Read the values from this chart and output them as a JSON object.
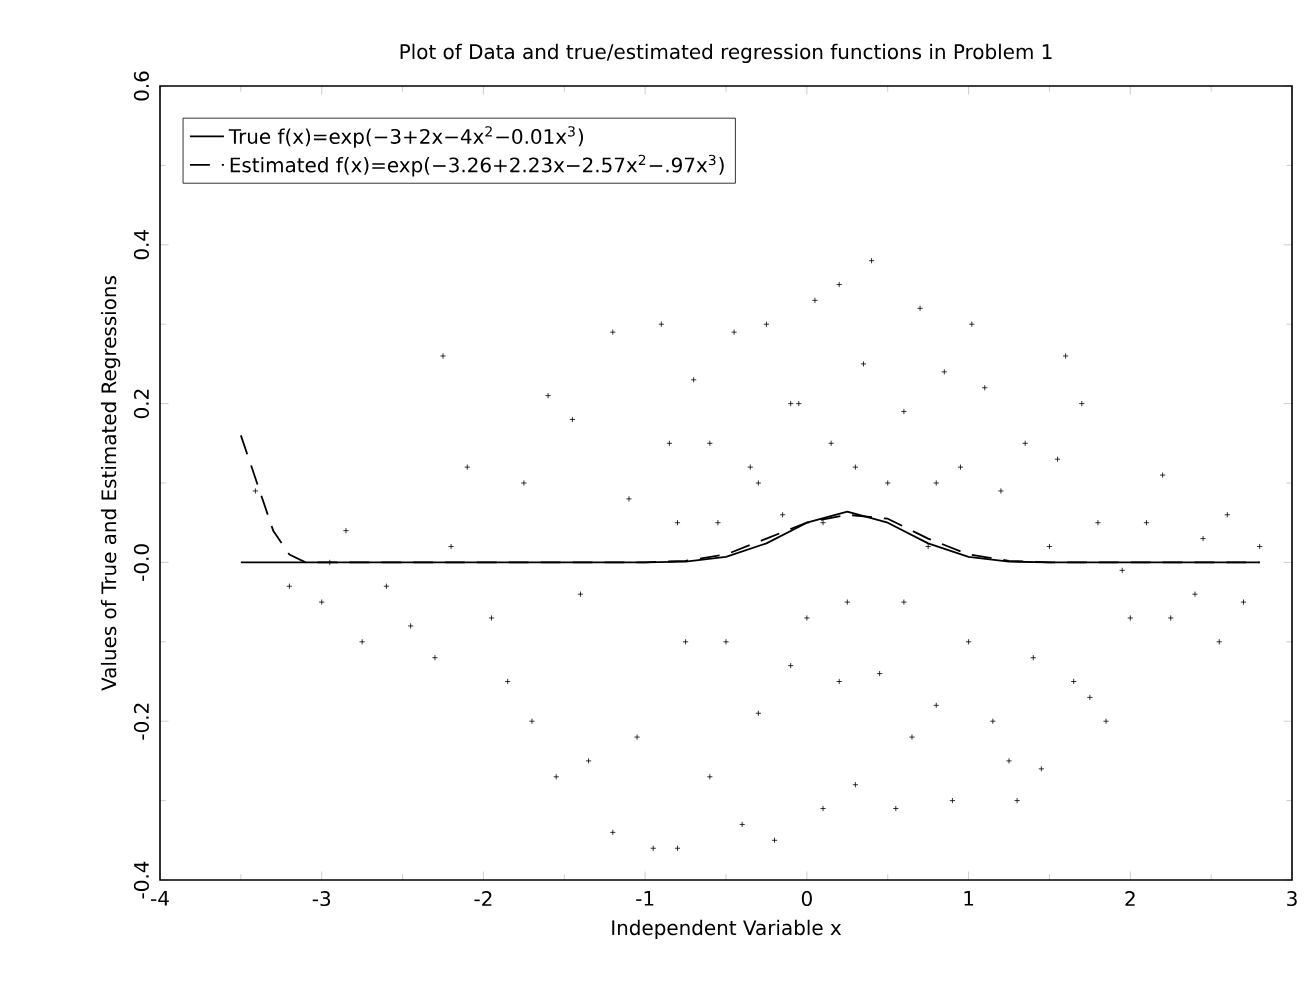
{
  "chart_data": {
    "type": "scatter",
    "title": "Plot of Data and true/estimated regression functions in Problem 1",
    "xlabel": "Independent Variable x",
    "ylabel": "Values of True and Estimated  Regressions",
    "xlim": [
      -4,
      3
    ],
    "ylim": [
      -0.4,
      0.6
    ],
    "xticks": [
      -4,
      -3,
      -2,
      -1,
      0,
      1,
      2,
      3
    ],
    "yticks": [
      -0.4,
      -0.2,
      {
        "value": 0,
        "label": "-0.0"
      },
      0.2,
      0.4,
      0.6
    ],
    "legend": "top left",
    "grid": false,
    "series": [
      {
        "color": "#000000",
        "marker": "cross",
        "x": [
          -3.41,
          -3.2,
          -3.0,
          -2.95,
          -2.85,
          -2.75,
          -2.6,
          -2.45,
          -2.3,
          -2.25,
          -2.2,
          -2.1,
          -1.95,
          -1.85,
          -1.75,
          -1.7,
          -1.6,
          -1.55,
          -1.45,
          -1.4,
          -1.35,
          -1.2,
          -1.2,
          -1.1,
          -1.05,
          -0.95,
          -0.9,
          -0.85,
          -0.8,
          -0.75,
          -0.7,
          -0.6,
          -0.55,
          -0.45,
          -0.4,
          -0.35,
          -0.3,
          -0.25,
          -0.2,
          -0.15,
          -0.1,
          -0.05,
          0.0,
          0.05,
          0.1,
          0.15,
          0.2,
          0.25,
          0.3,
          0.35,
          0.4,
          0.45,
          0.5,
          0.55,
          0.6,
          0.65,
          0.7,
          0.75,
          0.8,
          0.85,
          0.9,
          0.95,
          1.0,
          1.02,
          1.1,
          1.15,
          1.2,
          1.25,
          1.3,
          1.35,
          1.4,
          1.45,
          1.5,
          1.55,
          1.6,
          1.65,
          1.7,
          1.75,
          1.8,
          1.85,
          1.95,
          2.0,
          2.1,
          2.2,
          2.25,
          2.4,
          2.45,
          2.55,
          2.6,
          2.7,
          2.8,
          -0.5,
          -0.3,
          0.1,
          0.3,
          0.6,
          -0.6,
          0.2,
          -0.1,
          0.8,
          -0.8
        ],
        "values": [
          0.09,
          -0.03,
          -0.05,
          0.0,
          0.04,
          -0.1,
          -0.03,
          -0.08,
          -0.12,
          0.26,
          0.02,
          0.12,
          -0.07,
          -0.15,
          0.1,
          -0.2,
          0.21,
          -0.27,
          0.18,
          -0.04,
          -0.25,
          0.29,
          -0.34,
          0.08,
          -0.22,
          -0.36,
          0.3,
          0.15,
          -0.36,
          -0.1,
          0.23,
          -0.27,
          0.05,
          0.29,
          -0.33,
          0.12,
          -0.19,
          0.3,
          -0.35,
          0.06,
          -0.13,
          0.2,
          -0.07,
          0.33,
          -0.31,
          0.15,
          0.35,
          -0.05,
          -0.28,
          0.25,
          0.38,
          -0.14,
          0.1,
          -0.31,
          0.19,
          -0.22,
          0.32,
          0.02,
          -0.18,
          0.24,
          -0.3,
          0.12,
          -0.1,
          0.3,
          0.22,
          -0.2,
          0.09,
          -0.25,
          -0.3,
          0.15,
          -0.12,
          -0.26,
          0.02,
          0.13,
          0.26,
          -0.15,
          0.2,
          -0.17,
          0.05,
          -0.2,
          -0.01,
          -0.07,
          0.05,
          0.11,
          -0.07,
          -0.04,
          0.03,
          -0.1,
          0.06,
          -0.05,
          0.02,
          -0.1,
          0.1,
          0.05,
          0.12,
          -0.05,
          0.15,
          -0.15,
          0.2,
          0.1,
          0.05
        ]
      },
      {
        "type": "line",
        "name": "True f(x)=exp(−3+2x−4x$^{2}$−0.01x$^{3}$)",
        "color": "#000000",
        "line_style": "solid",
        "x": [
          -3.5,
          -2,
          -1,
          -0.75,
          -0.5,
          -0.25,
          0,
          0.25,
          0.5,
          0.75,
          1,
          1.25,
          1.5,
          2,
          2.8
        ],
        "values": [
          0,
          0,
          0,
          0.001,
          0.007,
          0.024,
          0.05,
          0.064,
          0.05,
          0.024,
          0.007,
          0.001,
          0,
          0,
          0
        ]
      },
      {
        "type": "line",
        "name": "Estimated f(x)=exp(−3.26+2.23x−2.57x$^{2}$−.97x$^{3}$)",
        "color": "#000000",
        "line_style": "dashed",
        "x": [
          -3.5,
          -3.4,
          -3.3,
          -3.2,
          -3.1,
          -2,
          -1,
          -0.75,
          -0.5,
          -0.25,
          0,
          0.25,
          0.5,
          0.75,
          1,
          1.25,
          1.5,
          2,
          2.8
        ],
        "values": [
          0.16,
          0.1,
          0.04,
          0.01,
          0,
          0,
          0,
          0.002,
          0.01,
          0.03,
          0.05,
          0.06,
          0.055,
          0.03,
          0.01,
          0.002,
          0,
          0,
          0
        ]
      }
    ]
  }
}
